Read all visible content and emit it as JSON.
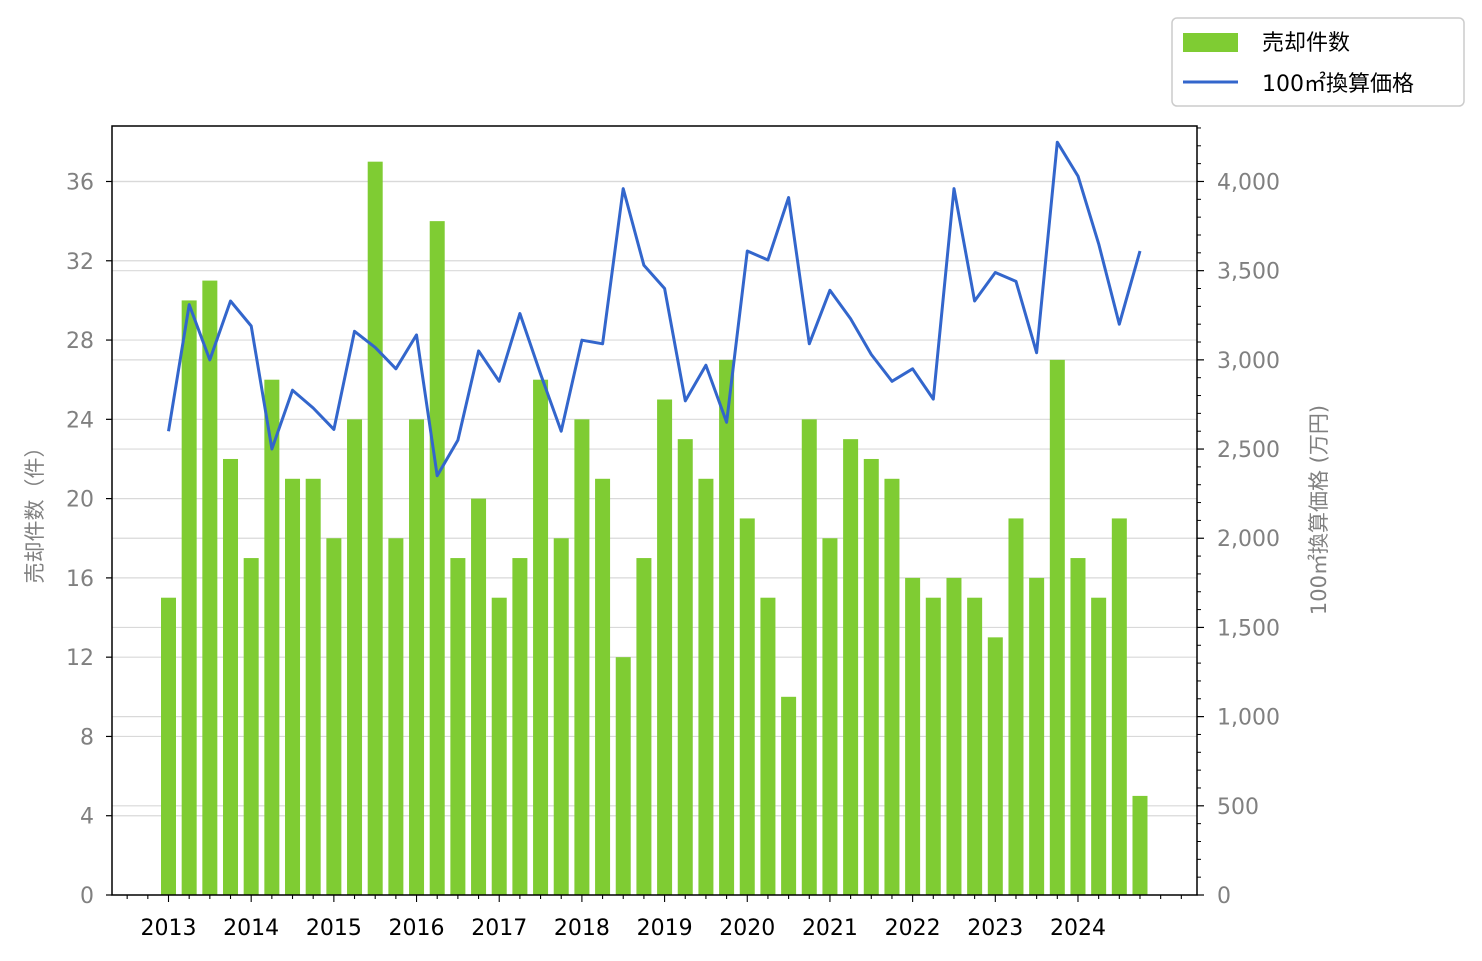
{
  "chart_data": {
    "type": "bar",
    "x_tick_labels": [
      "2013",
      "2014",
      "2015",
      "2016",
      "2017",
      "2018",
      "2019",
      "2020",
      "2021",
      "2022",
      "2023",
      "2024"
    ],
    "series": [
      {
        "name": "売却件数",
        "type": "bar",
        "axis": "left",
        "color": "#7fcc33",
        "values": [
          15,
          30,
          31,
          22,
          17,
          26,
          21,
          21,
          18,
          24,
          37,
          18,
          24,
          34,
          17,
          20,
          15,
          17,
          26,
          18,
          24,
          21,
          12,
          17,
          25,
          23,
          21,
          27,
          19,
          15,
          10,
          24,
          18,
          23,
          22,
          21,
          16,
          15,
          16,
          15,
          13,
          19,
          16,
          27,
          17,
          15,
          19,
          5
        ]
      },
      {
        "name": "100㎡換算価格",
        "type": "line",
        "axis": "right",
        "color": "#3366cc",
        "values": [
          2600,
          3310,
          3000,
          3330,
          3190,
          2500,
          2830,
          2730,
          2610,
          3160,
          3070,
          2950,
          3140,
          2350,
          2550,
          3050,
          2880,
          3260,
          2920,
          2600,
          3110,
          3090,
          3960,
          3530,
          3400,
          2770,
          2970,
          2650,
          3610,
          3560,
          3910,
          3090,
          3390,
          3230,
          3030,
          2880,
          2950,
          2780,
          3960,
          3330,
          3490,
          3440,
          3040,
          4220,
          4030,
          3650,
          3200,
          3610
        ]
      }
    ],
    "y_left": {
      "label": "売却件数（件）",
      "ylim": [
        0,
        38.8
      ],
      "ticks": [
        0,
        4,
        8,
        12,
        16,
        20,
        24,
        28,
        32,
        36
      ]
    },
    "y_right": {
      "label": "100㎡換算価格 (万円)",
      "ylim": [
        0,
        4311
      ],
      "ticks": [
        "0",
        "500",
        "1,000",
        "1,500",
        "2,000",
        "2,500",
        "3,000",
        "3,500",
        "4,000"
      ]
    },
    "grid": "horizontal",
    "legend_position": "top-right"
  }
}
